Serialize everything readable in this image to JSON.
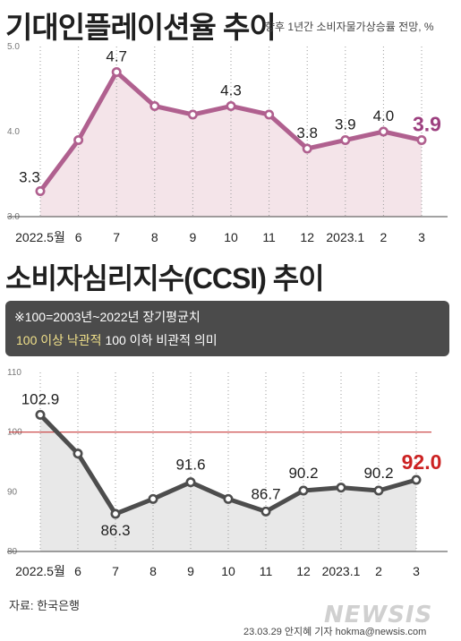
{
  "chart_data": [
    {
      "type": "line",
      "title": "기대인플레이션율 추이",
      "subtitle": "향후 1년간 소비자물가상승률 전망, %",
      "categories": [
        "2022.5월",
        "6",
        "7",
        "8",
        "9",
        "10",
        "11",
        "12",
        "2023.1",
        "2",
        "3"
      ],
      "values": [
        3.3,
        3.9,
        4.7,
        4.3,
        4.2,
        4.3,
        4.2,
        3.8,
        3.9,
        4.0,
        3.9
      ],
      "data_labels": [
        "3.3",
        "",
        "4.7",
        "",
        "",
        "4.3",
        "",
        "3.8",
        "3.9",
        "4.0",
        "3.9"
      ],
      "highlight_last": true,
      "ylim": [
        3.0,
        5.0
      ],
      "yticks": [
        "3.0",
        "4.0",
        "5.0"
      ],
      "grid": "vertical",
      "colors": {
        "line": "#b0608f",
        "highlight": "#9c3f7f",
        "fill": "#f4e4e9"
      }
    },
    {
      "type": "line",
      "title": "소비자심리지수(CCSI) 추이",
      "categories": [
        "2022.5월",
        "6",
        "7",
        "8",
        "9",
        "10",
        "11",
        "12",
        "2023.1",
        "2",
        "3"
      ],
      "values": [
        102.9,
        96.4,
        86.3,
        88.8,
        91.6,
        88.8,
        86.7,
        90.2,
        90.7,
        90.2,
        92.0
      ],
      "data_labels": [
        "102.9",
        "",
        "86.3",
        "",
        "91.6",
        "",
        "86.7",
        "90.2",
        "",
        "90.2",
        "92.0"
      ],
      "highlight_last": true,
      "ylim": [
        80,
        110
      ],
      "yticks": [
        "80",
        "90",
        "100",
        "110"
      ],
      "reference_line": 100,
      "grid": "vertical",
      "colors": {
        "line": "#4d4d4d",
        "highlight": "#cc2222",
        "reference": "#c83a3a",
        "fill": "#e8e8e8"
      }
    }
  ],
  "note": {
    "line1": "※100=2003년~2022년 장기평균치",
    "optimistic": "100 이상 낙관적",
    "pessimistic": "100 이하 비관적 의미"
  },
  "source": "자료: 한국은행",
  "credit": "23.03.29 안지혜 기자 hokma@newsis.com",
  "watermark": "NEWSIS"
}
